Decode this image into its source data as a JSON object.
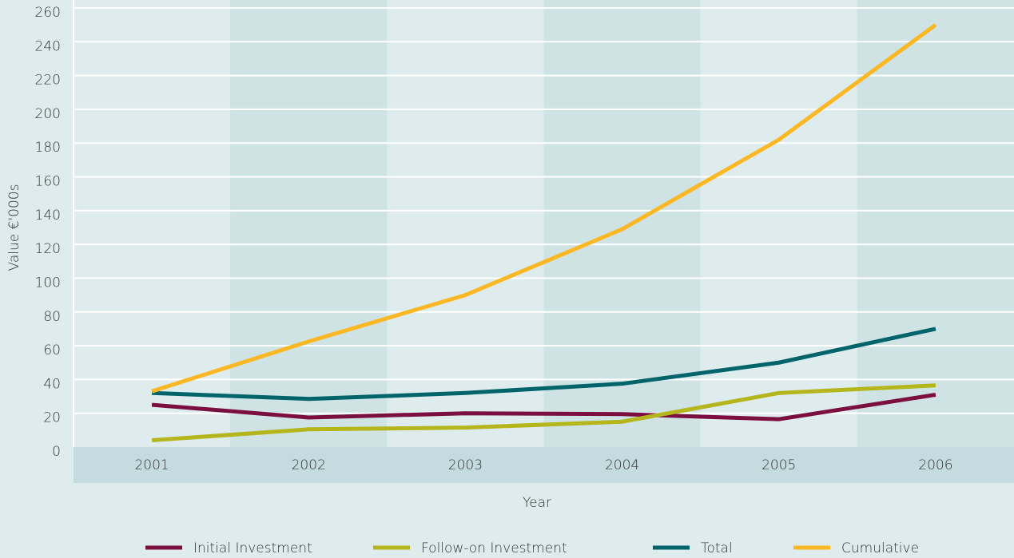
{
  "chart_data": {
    "type": "line",
    "x_label": "Year",
    "y_label": "Value €'000s",
    "categories": [
      "2001",
      "2002",
      "2003",
      "2004",
      "2005",
      "2006"
    ],
    "series": [
      {
        "name": "Initial Investment",
        "color": "#7a0f40",
        "values": [
          25,
          17.5,
          20,
          19.5,
          16.5,
          31
        ]
      },
      {
        "name": "Follow-on Investment",
        "color": "#b5b51c",
        "values": [
          4,
          10.5,
          11.5,
          15,
          32,
          36.5
        ]
      },
      {
        "name": "Total",
        "color": "#00646a",
        "values": [
          32,
          28.5,
          32,
          37.5,
          50,
          70
        ]
      },
      {
        "name": "Cumulative",
        "color": "#fbb824",
        "values": [
          33,
          62.5,
          90,
          129,
          182,
          250
        ]
      }
    ],
    "ylim": [
      0,
      260
    ],
    "yticks": [
      0,
      20,
      40,
      60,
      80,
      100,
      120,
      140,
      160,
      180,
      200,
      220,
      240,
      260
    ],
    "grid": true,
    "legend": "bottom"
  }
}
